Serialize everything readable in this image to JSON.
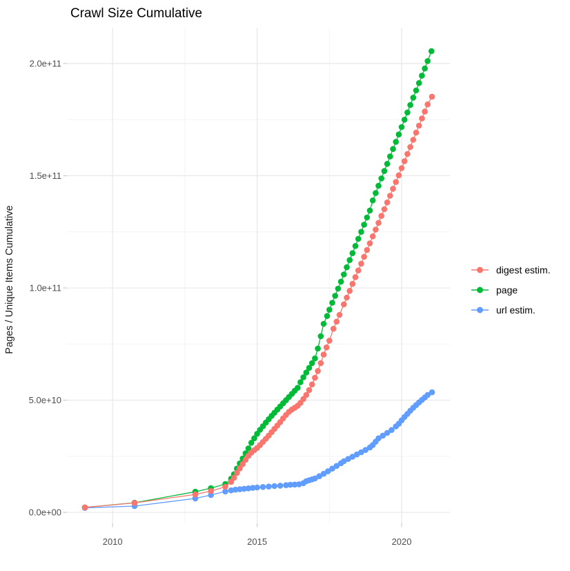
{
  "title": "Crawl Size Cumulative",
  "axes": {
    "y_label": "Pages / Unique Items Cumulative",
    "x_tick_labels": [
      "2010",
      "2015",
      "2020"
    ],
    "y_tick_labels": [
      "0.0e+00",
      "5.0e+10",
      "1.0e+11",
      "1.5e+11",
      "2.0e+11"
    ]
  },
  "legend": {
    "position": "right",
    "items": [
      {
        "label": "digest estim.",
        "color": "#F8766D"
      },
      {
        "label": "page",
        "color": "#00BA38"
      },
      {
        "label": "url estim.",
        "color": "#619CFF"
      }
    ]
  },
  "chart_data": {
    "type": "scatter",
    "title": "Crawl Size Cumulative",
    "xlabel": "",
    "ylabel": "Pages / Unique Items Cumulative",
    "x_unit": "year",
    "value_unit": "pages / unique items, in billions (1e9)",
    "grid": true,
    "legend_position": "right",
    "x_domain": [
      2008.42,
      2021.67
    ],
    "y_domain_billions": [
      -4.9,
      216.0
    ],
    "x_major_ticks": [
      2010,
      2015,
      2020
    ],
    "x_minor_ticks": [
      2012.5,
      2017.5
    ],
    "y_major_ticks_billions": [
      0,
      50,
      100,
      150,
      200
    ],
    "y_minor_ticks_billions": [
      25,
      75,
      125,
      175
    ],
    "x_tick_labels": [
      "2010",
      "2015",
      "2020"
    ],
    "y_tick_labels": [
      "0.0e+00",
      "5.0e+10",
      "1.0e+11",
      "1.5e+11",
      "2.0e+11"
    ],
    "series": [
      {
        "name": "digest estim.",
        "color": "#F8766D",
        "points": [
          [
            2009.04,
            2.2
          ],
          [
            2010.76,
            4.2
          ],
          [
            2012.86,
            8.0
          ],
          [
            2013.4,
            9.5
          ],
          [
            2013.9,
            11.4
          ],
          [
            2014.1,
            13.6
          ],
          [
            2014.2,
            15.4
          ],
          [
            2014.3,
            17.6
          ],
          [
            2014.4,
            19.6
          ],
          [
            2014.5,
            21.5
          ],
          [
            2014.6,
            23.4
          ],
          [
            2014.7,
            25.2
          ],
          [
            2014.8,
            26.6
          ],
          [
            2014.9,
            27.7
          ],
          [
            2015.0,
            28.7
          ],
          [
            2015.1,
            30.0
          ],
          [
            2015.2,
            31.4
          ],
          [
            2015.3,
            32.8
          ],
          [
            2015.4,
            34.2
          ],
          [
            2015.5,
            35.7
          ],
          [
            2015.6,
            37.2
          ],
          [
            2015.7,
            38.7
          ],
          [
            2015.8,
            40.2
          ],
          [
            2015.9,
            41.9
          ],
          [
            2016.0,
            43.4
          ],
          [
            2016.1,
            44.8
          ],
          [
            2016.2,
            45.8
          ],
          [
            2016.3,
            46.6
          ],
          [
            2016.4,
            47.5
          ],
          [
            2016.5,
            48.8
          ],
          [
            2016.6,
            50.5
          ],
          [
            2016.7,
            52.3
          ],
          [
            2016.8,
            54.5
          ],
          [
            2016.9,
            57.0
          ],
          [
            2017.0,
            60.0
          ],
          [
            2017.1,
            63.0
          ],
          [
            2017.2,
            66.5
          ],
          [
            2017.3,
            70.3
          ],
          [
            2017.4,
            73.5
          ],
          [
            2017.5,
            76.5
          ],
          [
            2017.64,
            81.8
          ],
          [
            2017.75,
            85.0
          ],
          [
            2017.85,
            88.0
          ],
          [
            2018.0,
            92.7
          ],
          [
            2018.1,
            95.7
          ],
          [
            2018.2,
            98.7
          ],
          [
            2018.3,
            101.8
          ],
          [
            2018.4,
            104.8
          ],
          [
            2018.5,
            107.8
          ],
          [
            2018.6,
            110.8
          ],
          [
            2018.7,
            113.9
          ],
          [
            2018.8,
            116.9
          ],
          [
            2018.9,
            119.9
          ],
          [
            2019.0,
            123.0
          ],
          [
            2019.1,
            126.0
          ],
          [
            2019.2,
            129.0
          ],
          [
            2019.3,
            132.1
          ],
          [
            2019.4,
            135.1
          ],
          [
            2019.5,
            138.1
          ],
          [
            2019.6,
            141.1
          ],
          [
            2019.7,
            144.2
          ],
          [
            2019.8,
            147.2
          ],
          [
            2019.9,
            150.2
          ],
          [
            2020.0,
            153.4
          ],
          [
            2020.1,
            156.5
          ],
          [
            2020.2,
            159.7
          ],
          [
            2020.3,
            162.8
          ],
          [
            2020.4,
            166.0
          ],
          [
            2020.5,
            169.2
          ],
          [
            2020.6,
            172.3
          ],
          [
            2020.7,
            175.5
          ],
          [
            2020.8,
            178.6
          ],
          [
            2020.9,
            181.8
          ],
          [
            2021.05,
            185.2
          ]
        ]
      },
      {
        "name": "page",
        "color": "#00BA38",
        "points": [
          [
            2009.04,
            2.2
          ],
          [
            2010.76,
            4.3
          ],
          [
            2012.86,
            9.2
          ],
          [
            2013.4,
            10.8
          ],
          [
            2013.9,
            12.6
          ],
          [
            2014.1,
            15.0
          ],
          [
            2014.2,
            17.0
          ],
          [
            2014.3,
            19.5
          ],
          [
            2014.4,
            21.8
          ],
          [
            2014.5,
            24.0
          ],
          [
            2014.6,
            26.3
          ],
          [
            2014.7,
            28.5
          ],
          [
            2014.8,
            31.0
          ],
          [
            2014.9,
            33.0
          ],
          [
            2015.0,
            35.0
          ],
          [
            2015.1,
            36.8
          ],
          [
            2015.2,
            38.4
          ],
          [
            2015.3,
            40.0
          ],
          [
            2015.4,
            41.5
          ],
          [
            2015.5,
            43.0
          ],
          [
            2015.6,
            44.4
          ],
          [
            2015.7,
            45.8
          ],
          [
            2015.8,
            47.2
          ],
          [
            2015.9,
            48.6
          ],
          [
            2016.0,
            50.0
          ],
          [
            2016.1,
            51.4
          ],
          [
            2016.2,
            52.8
          ],
          [
            2016.3,
            54.2
          ],
          [
            2016.4,
            55.5
          ],
          [
            2016.5,
            58.0
          ],
          [
            2016.6,
            60.2
          ],
          [
            2016.7,
            62.3
          ],
          [
            2016.8,
            64.4
          ],
          [
            2016.9,
            66.5
          ],
          [
            2017.0,
            68.6
          ],
          [
            2017.1,
            73.0
          ],
          [
            2017.2,
            78.5
          ],
          [
            2017.3,
            84.0
          ],
          [
            2017.42,
            87.5
          ],
          [
            2017.5,
            90.3
          ],
          [
            2017.6,
            93.4
          ],
          [
            2017.7,
            96.5
          ],
          [
            2017.8,
            99.7
          ],
          [
            2017.9,
            102.8
          ],
          [
            2018.0,
            106.0
          ],
          [
            2018.1,
            109.2
          ],
          [
            2018.2,
            112.4
          ],
          [
            2018.3,
            115.5
          ],
          [
            2018.4,
            118.7
          ],
          [
            2018.5,
            121.9
          ],
          [
            2018.6,
            125.0
          ],
          [
            2018.7,
            128.2
          ],
          [
            2018.8,
            131.4
          ],
          [
            2018.9,
            134.5
          ],
          [
            2019.0,
            139.0
          ],
          [
            2019.1,
            142.3
          ],
          [
            2019.2,
            145.5
          ],
          [
            2019.3,
            148.8
          ],
          [
            2019.4,
            152.1
          ],
          [
            2019.5,
            155.3
          ],
          [
            2019.6,
            158.6
          ],
          [
            2019.7,
            161.9
          ],
          [
            2019.8,
            165.1
          ],
          [
            2019.9,
            168.4
          ],
          [
            2020.0,
            171.7
          ],
          [
            2020.1,
            175.0
          ],
          [
            2020.2,
            178.2
          ],
          [
            2020.3,
            181.5
          ],
          [
            2020.4,
            184.8
          ],
          [
            2020.5,
            188.0
          ],
          [
            2020.6,
            191.3
          ],
          [
            2020.7,
            194.6
          ],
          [
            2020.8,
            197.8
          ],
          [
            2020.9,
            201.1
          ],
          [
            2021.03,
            205.5
          ]
        ]
      },
      {
        "name": "url estim.",
        "color": "#619CFF",
        "points": [
          [
            2009.04,
            2.0
          ],
          [
            2010.76,
            2.8
          ],
          [
            2012.86,
            6.2
          ],
          [
            2013.4,
            7.7
          ],
          [
            2013.9,
            9.3
          ],
          [
            2014.1,
            9.8
          ],
          [
            2014.25,
            10.1
          ],
          [
            2014.4,
            10.3
          ],
          [
            2014.55,
            10.5
          ],
          [
            2014.7,
            10.7
          ],
          [
            2014.85,
            10.9
          ],
          [
            2015.0,
            11.1
          ],
          [
            2015.2,
            11.3
          ],
          [
            2015.4,
            11.5
          ],
          [
            2015.6,
            11.7
          ],
          [
            2015.8,
            11.9
          ],
          [
            2016.0,
            12.1
          ],
          [
            2016.15,
            12.3
          ],
          [
            2016.3,
            12.4
          ],
          [
            2016.45,
            12.5
          ],
          [
            2016.6,
            13.0
          ],
          [
            2016.7,
            13.9
          ],
          [
            2016.8,
            14.3
          ],
          [
            2016.9,
            14.7
          ],
          [
            2017.0,
            15.1
          ],
          [
            2017.15,
            16.1
          ],
          [
            2017.3,
            17.2
          ],
          [
            2017.45,
            18.3
          ],
          [
            2017.6,
            19.5
          ],
          [
            2017.75,
            20.7
          ],
          [
            2017.9,
            21.9
          ],
          [
            2018.0,
            22.8
          ],
          [
            2018.15,
            23.8
          ],
          [
            2018.3,
            24.8
          ],
          [
            2018.45,
            25.8
          ],
          [
            2018.6,
            26.8
          ],
          [
            2018.75,
            27.8
          ],
          [
            2018.9,
            28.9
          ],
          [
            2019.0,
            30.0
          ],
          [
            2019.1,
            31.5
          ],
          [
            2019.2,
            33.0
          ],
          [
            2019.35,
            34.2
          ],
          [
            2019.5,
            35.4
          ],
          [
            2019.65,
            36.7
          ],
          [
            2019.8,
            38.3
          ],
          [
            2019.9,
            39.5
          ],
          [
            2020.0,
            41.0
          ],
          [
            2020.1,
            42.5
          ],
          [
            2020.2,
            43.9
          ],
          [
            2020.3,
            45.3
          ],
          [
            2020.4,
            46.6
          ],
          [
            2020.5,
            47.8
          ],
          [
            2020.6,
            49.0
          ],
          [
            2020.7,
            50.1
          ],
          [
            2020.8,
            51.2
          ],
          [
            2020.9,
            52.3
          ],
          [
            2021.05,
            53.5
          ]
        ]
      }
    ]
  }
}
